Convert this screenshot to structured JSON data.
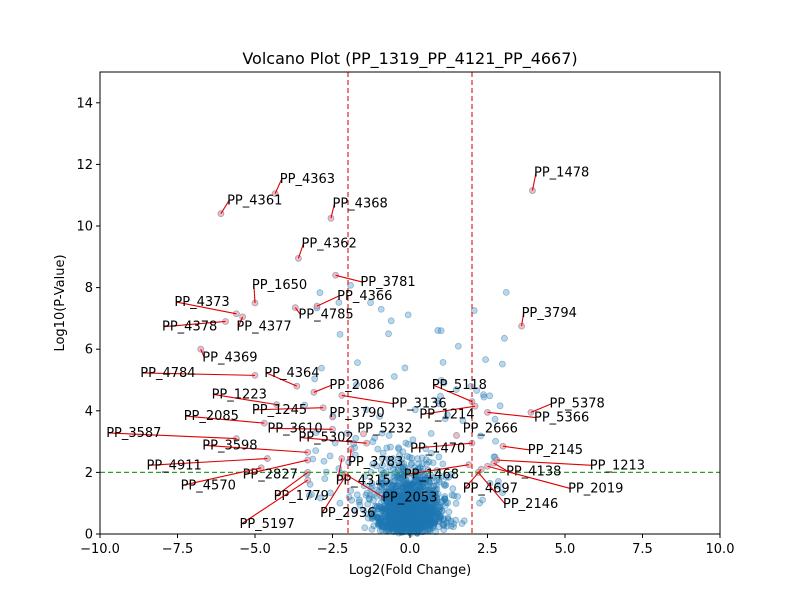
{
  "chart_data": {
    "type": "scatter",
    "title": "Volcano Plot (PP_1319_PP_4121_PP_4667)",
    "xlabel": "Log2(Fold Change)",
    "ylabel": "Log10(P-Value)",
    "xlim": [
      -10,
      10
    ],
    "ylim": [
      0,
      15
    ],
    "xticks": [
      -10,
      -7.5,
      -5,
      -2.5,
      0,
      2.5,
      5,
      7.5,
      10
    ],
    "xtick_labels": [
      "−10.0",
      "−7.5",
      "−5.0",
      "−2.5",
      "0.0",
      "2.5",
      "5.0",
      "7.5",
      "10.0"
    ],
    "yticks": [
      0,
      2,
      4,
      6,
      8,
      10,
      12,
      14
    ],
    "ytick_labels": [
      "0",
      "2",
      "4",
      "6",
      "8",
      "10",
      "12",
      "14"
    ],
    "grid": false,
    "thresholds": {
      "fold_change": [
        -2,
        2
      ],
      "p_value": 2
    },
    "colors": {
      "points": "#1f77b4",
      "highlight": "#ff9999",
      "fc_line": "#d62728",
      "p_line": "#2ca02c",
      "annotation_line": "#e00000"
    },
    "labeled_points": [
      {
        "gene": "PP_1478",
        "x": 3.95,
        "y": 11.15,
        "lx": 4.0,
        "ly": 11.6
      },
      {
        "gene": "PP_4363",
        "x": -4.35,
        "y": 11.05,
        "lx": -4.2,
        "ly": 11.4
      },
      {
        "gene": "PP_4361",
        "x": -6.1,
        "y": 10.4,
        "lx": -5.9,
        "ly": 10.7
      },
      {
        "gene": "PP_4368",
        "x": -2.55,
        "y": 10.25,
        "lx": -2.5,
        "ly": 10.6
      },
      {
        "gene": "PP_4362",
        "x": -3.6,
        "y": 8.95,
        "lx": -3.5,
        "ly": 9.3
      },
      {
        "gene": "PP_3781",
        "x": -2.4,
        "y": 8.4,
        "lx": -1.6,
        "ly": 8.05
      },
      {
        "gene": "PP_1650",
        "x": -5.0,
        "y": 7.5,
        "lx": -5.1,
        "ly": 7.95
      },
      {
        "gene": "PP_4366",
        "x": -3.0,
        "y": 7.4,
        "lx": -2.35,
        "ly": 7.6
      },
      {
        "gene": "PP_4785",
        "x": -3.7,
        "y": 7.35,
        "lx": -3.6,
        "ly": 7.0
      },
      {
        "gene": "PP_4373",
        "x": -5.6,
        "y": 7.15,
        "lx": -7.6,
        "ly": 7.4
      },
      {
        "gene": "PP_3794",
        "x": 3.6,
        "y": 6.75,
        "lx": 3.6,
        "ly": 7.05
      },
      {
        "gene": "PP_4377",
        "x": -5.4,
        "y": 7.05,
        "lx": -5.6,
        "ly": 6.6
      },
      {
        "gene": "PP_4378",
        "x": -5.95,
        "y": 6.9,
        "lx": -8.0,
        "ly": 6.6
      },
      {
        "gene": "PP_4369",
        "x": -6.75,
        "y": 6.0,
        "lx": -6.7,
        "ly": 5.6
      },
      {
        "gene": "PP_4784",
        "x": -5.0,
        "y": 5.15,
        "lx": -8.7,
        "ly": 5.1
      },
      {
        "gene": "PP_4364",
        "x": -3.65,
        "y": 4.8,
        "lx": -4.7,
        "ly": 5.1
      },
      {
        "gene": "PP_2086",
        "x": -3.1,
        "y": 4.6,
        "lx": -2.6,
        "ly": 4.7
      },
      {
        "gene": "PP_5118",
        "x": 2.0,
        "y": 4.3,
        "lx": 0.7,
        "ly": 4.7
      },
      {
        "gene": "PP_1223",
        "x": -4.3,
        "y": 4.2,
        "lx": -6.4,
        "ly": 4.4
      },
      {
        "gene": "PP_3136",
        "x": -2.2,
        "y": 4.5,
        "lx": -0.6,
        "ly": 4.1
      },
      {
        "gene": "PP_5378",
        "x": 3.9,
        "y": 3.95,
        "lx": 4.5,
        "ly": 4.1
      },
      {
        "gene": "PP_1245",
        "x": -2.8,
        "y": 4.1,
        "lx": -5.1,
        "ly": 3.9
      },
      {
        "gene": "PP_3790",
        "x": -2.5,
        "y": 3.8,
        "lx": -2.6,
        "ly": 3.8
      },
      {
        "gene": "PP_1214",
        "x": 2.1,
        "y": 4.15,
        "lx": 0.3,
        "ly": 3.75
      },
      {
        "gene": "PP_5366",
        "x": 2.5,
        "y": 3.95,
        "lx": 4.0,
        "ly": 3.65
      },
      {
        "gene": "PP_2085",
        "x": -4.7,
        "y": 3.6,
        "lx": -7.3,
        "ly": 3.7
      },
      {
        "gene": "PP_3610",
        "x": -2.5,
        "y": 3.4,
        "lx": -4.6,
        "ly": 3.3
      },
      {
        "gene": "PP_5232",
        "x": -1.5,
        "y": 3.25,
        "lx": -1.7,
        "ly": 3.3
      },
      {
        "gene": "PP_2666",
        "x": 1.5,
        "y": 3.2,
        "lx": 1.7,
        "ly": 3.3
      },
      {
        "gene": "PP_3587",
        "x": -5.6,
        "y": 3.1,
        "lx": -9.8,
        "ly": 3.15
      },
      {
        "gene": "PP_5302",
        "x": -1.4,
        "y": 2.95,
        "lx": -3.6,
        "ly": 3.0
      },
      {
        "gene": "PP_3598",
        "x": -3.3,
        "y": 2.65,
        "lx": -6.7,
        "ly": 2.75
      },
      {
        "gene": "PP_2145",
        "x": 3.0,
        "y": 2.85,
        "lx": 3.8,
        "ly": 2.6
      },
      {
        "gene": "PP_1470",
        "x": 2.0,
        "y": 2.95,
        "lx": 0.0,
        "ly": 2.65
      },
      {
        "gene": "PP_3783",
        "x": -1.9,
        "y": 2.75,
        "lx": -2.0,
        "ly": 2.2
      },
      {
        "gene": "PP_4911",
        "x": -4.6,
        "y": 2.45,
        "lx": -8.5,
        "ly": 2.1
      },
      {
        "gene": "PP_1213",
        "x": 2.8,
        "y": 2.4,
        "lx": 5.8,
        "ly": 2.1
      },
      {
        "gene": "PP_2827",
        "x": -3.3,
        "y": 2.4,
        "lx": -5.4,
        "ly": 1.8
      },
      {
        "gene": "PP_4138",
        "x": 2.7,
        "y": 2.3,
        "lx": 3.1,
        "ly": 1.9
      },
      {
        "gene": "PP_1468",
        "x": 1.9,
        "y": 2.25,
        "lx": -0.2,
        "ly": 1.8
      },
      {
        "gene": "PP_4315",
        "x": -2.2,
        "y": 2.45,
        "lx": -2.4,
        "ly": 1.6
      },
      {
        "gene": "PP_4570",
        "x": -4.8,
        "y": 2.15,
        "lx": -7.4,
        "ly": 1.45
      },
      {
        "gene": "PP_2019",
        "x": 2.5,
        "y": 2.2,
        "lx": 5.1,
        "ly": 1.35
      },
      {
        "gene": "PP_4697",
        "x": 2.3,
        "y": 2.1,
        "lx": 1.7,
        "ly": 1.35
      },
      {
        "gene": "PP_1779",
        "x": -3.3,
        "y": 2.0,
        "lx": -4.4,
        "ly": 1.1
      },
      {
        "gene": "PP_2053",
        "x": -2.1,
        "y": 1.95,
        "lx": -0.9,
        "ly": 1.05
      },
      {
        "gene": "PP_2146",
        "x": 2.2,
        "y": 2.0,
        "lx": 3.0,
        "ly": 0.85
      },
      {
        "gene": "PP_2936",
        "x": -2.1,
        "y": 1.85,
        "lx": -2.9,
        "ly": 0.55
      },
      {
        "gene": "PP_5197",
        "x": -3.3,
        "y": 1.75,
        "lx": -5.5,
        "ly": 0.2
      }
    ]
  }
}
